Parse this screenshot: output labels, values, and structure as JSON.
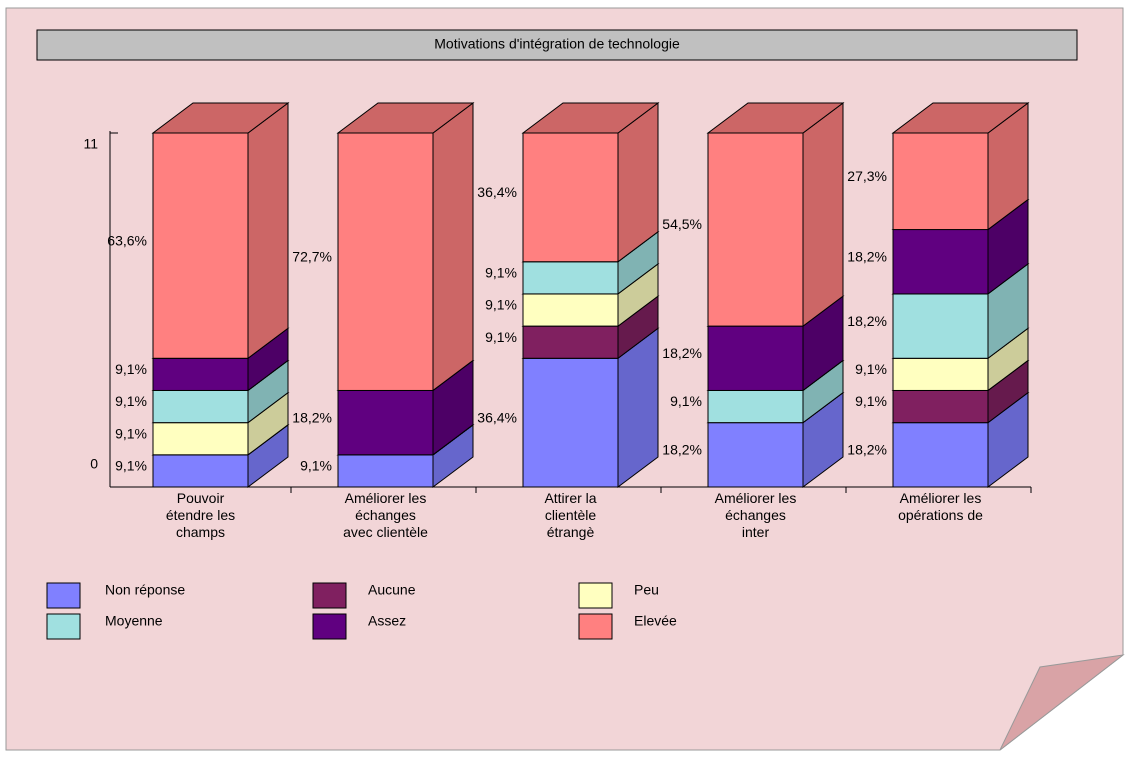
{
  "chart_data": {
    "type": "bar3d_stacked",
    "title": "Motivations d'intégration de technologie",
    "categories": [
      "Pouvoir\nétendre les\nchamps",
      "Améliorer les\néchanges\navec clientèle",
      "Attirer la\nclientèle\nétrangè",
      "Améliorer les\néchanges\ninter",
      "Améliorer les\nopérations de"
    ],
    "ylim": [
      0,
      11
    ],
    "yticks": [
      0,
      11
    ],
    "series": [
      {
        "name": "Non réponse",
        "color": "#8080ff",
        "values": [
          1,
          1,
          4,
          2,
          2
        ],
        "value_labels": [
          "9,1%",
          "9,1%",
          "36,4%",
          "18,2%",
          "18,2%"
        ]
      },
      {
        "name": "Aucune",
        "color": "#802060",
        "values": [
          0,
          0,
          1,
          0,
          1
        ],
        "value_labels": [
          null,
          null,
          "9,1%",
          null,
          "9,1%"
        ]
      },
      {
        "name": "Peu",
        "color": "#ffffc0",
        "values": [
          1,
          0,
          1,
          0,
          1
        ],
        "value_labels": [
          "9,1%",
          null,
          "9,1%",
          null,
          "9,1%"
        ]
      },
      {
        "name": "Moyenne",
        "color": "#a0e0e0",
        "values": [
          1,
          0,
          1,
          1,
          2
        ],
        "value_labels": [
          "9,1%",
          null,
          "9,1%",
          "9,1%",
          "18,2%"
        ]
      },
      {
        "name": "Assez",
        "color": "#600080",
        "values": [
          1,
          2,
          0,
          2,
          2
        ],
        "value_labels": [
          "9,1%",
          "18,2%",
          null,
          "18,2%",
          "18,2%"
        ]
      },
      {
        "name": "Elevée",
        "color": "#ff8080",
        "values": [
          7,
          8,
          4,
          6,
          3
        ],
        "value_labels": [
          "63,6%",
          "72,7%",
          "36,4%",
          "54,5%",
          "27,3%"
        ]
      }
    ]
  }
}
